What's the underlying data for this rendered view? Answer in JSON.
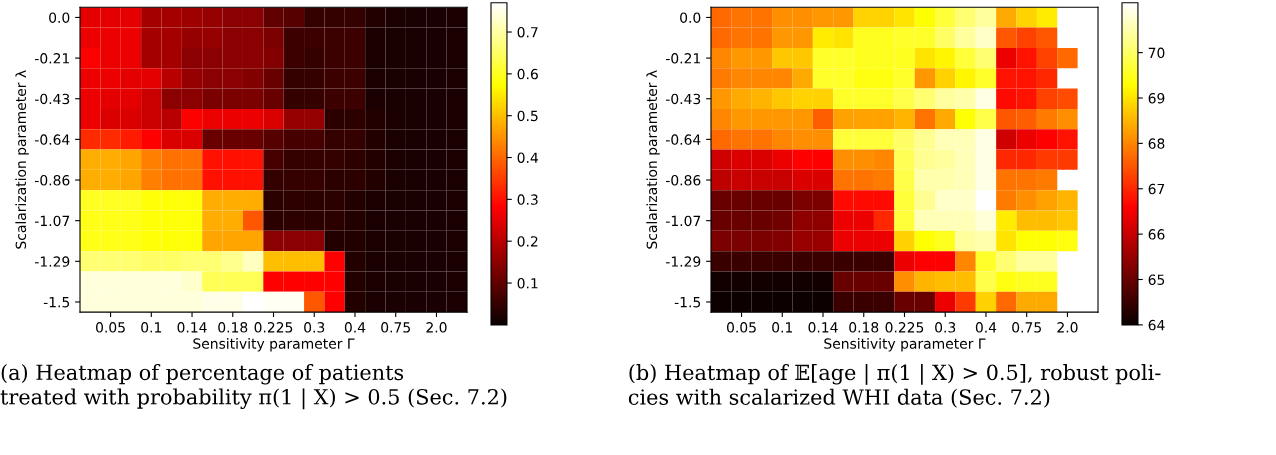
{
  "chart_data": [
    {
      "type": "heatmap",
      "xlabel": "Sensitivity parameter Γ",
      "ylabel": "Scalarization parameter λ",
      "categories": [
        null,
        "0.05",
        null,
        "0.1",
        null,
        "0.14",
        null,
        "0.18",
        null,
        "0.225",
        null,
        "0.3",
        null,
        "0.4",
        null,
        "0.75",
        null,
        "2.0",
        null
      ],
      "y_categories": [
        "0.0",
        null,
        "-0.21",
        null,
        "-0.43",
        null,
        "-0.64",
        null,
        "-0.86",
        null,
        "-1.07",
        null,
        "-1.29",
        null,
        "-1.5"
      ],
      "clim": [
        0.0,
        0.77
      ],
      "cticks": [
        0.1,
        0.2,
        0.3,
        0.4,
        0.5,
        0.6,
        0.7
      ],
      "annotations": [
        "(a) Heatmap of percentage of patients\ntreated with probability π(1 | X) > 0.5 (Sec. 7.2)"
      ],
      "cells": [
        [
          0.25,
          0.25,
          0.25,
          0.18,
          0.18,
          0.17,
          0.16,
          0.15,
          0.15,
          0.1,
          0.09,
          0.05,
          0.05,
          0.05,
          0.03,
          0.02,
          0.02,
          0.02,
          0.02
        ],
        [
          0.26,
          0.26,
          0.26,
          0.18,
          0.18,
          0.16,
          0.16,
          0.15,
          0.15,
          0.13,
          0.06,
          0.06,
          0.06,
          0.06,
          0.02,
          0.02,
          0.02,
          0.02,
          0.02
        ],
        [
          0.28,
          0.26,
          0.26,
          0.18,
          0.18,
          0.15,
          0.15,
          0.15,
          0.15,
          0.14,
          0.06,
          0.05,
          0.06,
          0.06,
          0.02,
          0.02,
          0.02,
          0.02,
          0.02
        ],
        [
          0.26,
          0.26,
          0.25,
          0.25,
          0.2,
          0.16,
          0.15,
          0.15,
          0.14,
          0.11,
          0.05,
          0.05,
          0.06,
          0.06,
          0.02,
          0.02,
          0.02,
          0.02,
          0.02
        ],
        [
          0.26,
          0.25,
          0.25,
          0.22,
          0.15,
          0.15,
          0.13,
          0.13,
          0.13,
          0.11,
          0.05,
          0.05,
          0.06,
          0.06,
          0.02,
          0.02,
          0.02,
          0.02,
          0.02
        ],
        [
          0.26,
          0.24,
          0.24,
          0.22,
          0.2,
          0.28,
          0.26,
          0.26,
          0.26,
          0.24,
          0.16,
          0.16,
          0.04,
          0.04,
          0.03,
          0.02,
          0.02,
          0.02,
          0.02
        ],
        [
          0.33,
          0.33,
          0.31,
          0.28,
          0.24,
          0.24,
          0.11,
          0.11,
          0.11,
          0.09,
          0.07,
          0.07,
          0.05,
          0.05,
          0.03,
          0.02,
          0.02,
          0.02,
          0.02
        ],
        [
          0.48,
          0.48,
          0.47,
          0.43,
          0.41,
          0.41,
          0.3,
          0.3,
          0.3,
          0.07,
          0.05,
          0.05,
          0.05,
          0.04,
          0.03,
          0.02,
          0.02,
          0.02,
          0.02
        ],
        [
          0.48,
          0.48,
          0.47,
          0.43,
          0.41,
          0.41,
          0.3,
          0.3,
          0.3,
          0.05,
          0.05,
          0.05,
          0.04,
          0.04,
          0.03,
          0.02,
          0.02,
          0.02,
          0.02
        ],
        [
          0.6,
          0.6,
          0.6,
          0.58,
          0.58,
          0.58,
          0.48,
          0.48,
          0.48,
          0.04,
          0.04,
          0.04,
          0.04,
          0.03,
          0.02,
          0.02,
          0.02,
          0.02,
          0.02
        ],
        [
          0.59,
          0.59,
          0.59,
          0.58,
          0.58,
          0.58,
          0.48,
          0.48,
          0.38,
          0.04,
          0.04,
          0.04,
          0.04,
          0.03,
          0.02,
          0.02,
          0.02,
          0.02,
          0.02
        ],
        [
          0.59,
          0.59,
          0.59,
          0.58,
          0.58,
          0.58,
          0.47,
          0.47,
          0.47,
          0.15,
          0.15,
          0.15,
          0.03,
          0.03,
          0.02,
          0.02,
          0.02,
          0.02,
          0.02
        ],
        [
          0.66,
          0.66,
          0.66,
          0.65,
          0.65,
          0.66,
          0.66,
          0.68,
          0.72,
          0.5,
          0.5,
          0.5,
          0.28,
          0.03,
          0.02,
          0.02,
          0.02,
          0.02,
          0.02
        ],
        [
          0.74,
          0.74,
          0.74,
          0.74,
          0.74,
          0.73,
          0.64,
          0.64,
          0.64,
          0.28,
          0.28,
          0.28,
          0.28,
          0.03,
          0.02,
          0.02,
          0.02,
          0.02,
          0.02
        ],
        [
          0.74,
          0.74,
          0.74,
          0.74,
          0.74,
          0.74,
          0.75,
          0.75,
          0.77,
          0.76,
          0.76,
          0.38,
          0.28,
          0.03,
          0.02,
          0.02,
          0.02,
          0.02,
          0.02
        ]
      ]
    },
    {
      "type": "heatmap",
      "xlabel": "Sensitivity parameter Γ",
      "ylabel": "Scalarization parameter λ",
      "categories": [
        null,
        "0.05",
        null,
        "0.1",
        null,
        "0.14",
        null,
        "0.18",
        null,
        "0.225",
        null,
        "0.3",
        null,
        "0.4",
        null,
        "0.75",
        null,
        "2.0",
        null
      ],
      "y_categories": [
        "0.0",
        null,
        "-0.21",
        null,
        "-0.43",
        null,
        "-0.64",
        null,
        "-0.86",
        null,
        "-1.07",
        null,
        "-1.29",
        null,
        "-1.5"
      ],
      "clim": [
        64,
        71.1
      ],
      "cticks": [
        64,
        65,
        66,
        67,
        68,
        69,
        70
      ],
      "annotations": [
        "(b) Heatmap of 𝔼[age | π(1 | X) > 0.5], robust poli-\ncies with scalarized WHI data (Sec. 7.2)"
      ],
      "cells": [
        [
          67.7,
          67.8,
          67.8,
          68.1,
          68.1,
          68.2,
          68.2,
          68.8,
          68.8,
          69.0,
          69.3,
          69.7,
          70.1,
          70.4,
          68.4,
          68.8,
          69.1,
          null,
          null
        ],
        [
          67.7,
          67.8,
          67.8,
          68.2,
          68.2,
          69.1,
          69.0,
          69.5,
          69.5,
          69.6,
          69.6,
          70.0,
          70.4,
          70.7,
          67.5,
          67.3,
          67.5,
          null,
          null
        ],
        [
          68.0,
          68.2,
          68.2,
          68.7,
          68.7,
          69.6,
          69.6,
          69.5,
          69.5,
          69.5,
          69.0,
          69.2,
          69.7,
          70.1,
          66.4,
          66.8,
          67.3,
          67.7,
          null
        ],
        [
          67.9,
          68.0,
          68.0,
          68.0,
          68.4,
          69.6,
          69.6,
          69.4,
          69.4,
          69.6,
          68.2,
          68.8,
          69.2,
          69.6,
          66.8,
          66.8,
          67.0,
          null,
          null
        ],
        [
          68.2,
          68.4,
          68.5,
          68.7,
          68.8,
          68.8,
          69.6,
          69.6,
          69.6,
          69.8,
          70.1,
          70.4,
          70.5,
          70.9,
          66.7,
          66.8,
          67.3,
          67.4,
          null
        ],
        [
          68.0,
          68.2,
          68.2,
          68.2,
          68.2,
          67.6,
          68.3,
          68.3,
          68.3,
          68.5,
          67.8,
          68.4,
          69.3,
          69.8,
          67.5,
          67.6,
          67.9,
          68.1,
          null
        ],
        [
          67.7,
          67.8,
          67.8,
          68.0,
          68.1,
          68.1,
          69.7,
          69.7,
          69.7,
          70.0,
          70.3,
          70.6,
          70.6,
          70.9,
          66.1,
          66.4,
          66.6,
          66.8,
          null
        ],
        [
          66.1,
          66.2,
          66.2,
          66.4,
          66.6,
          66.6,
          68.1,
          68.1,
          68.0,
          69.9,
          70.3,
          70.4,
          70.6,
          70.9,
          67.0,
          67.0,
          67.2,
          67.2,
          null
        ],
        [
          65.9,
          66.0,
          66.0,
          66.0,
          66.2,
          66.2,
          67.8,
          67.8,
          67.9,
          69.8,
          70.5,
          70.5,
          70.6,
          70.9,
          67.8,
          67.8,
          67.9,
          null,
          null
        ],
        [
          65.0,
          65.0,
          65.0,
          65.0,
          65.2,
          65.2,
          66.7,
          66.7,
          66.7,
          69.7,
          70.3,
          70.7,
          70.7,
          71.1,
          67.9,
          68.1,
          68.3,
          68.5,
          null
        ],
        [
          65.0,
          65.0,
          65.0,
          65.1,
          65.4,
          65.4,
          66.4,
          66.4,
          67.0,
          69.7,
          70.6,
          70.6,
          70.6,
          70.8,
          69.1,
          68.6,
          68.6,
          68.7,
          null
        ],
        [
          65.2,
          65.2,
          65.2,
          65.3,
          65.5,
          65.5,
          66.4,
          66.4,
          66.4,
          68.8,
          69.3,
          69.5,
          70.4,
          70.5,
          69.0,
          69.3,
          69.3,
          69.4,
          null
        ],
        [
          64.5,
          64.5,
          64.5,
          64.5,
          64.5,
          64.5,
          64.5,
          64.5,
          64.5,
          66.4,
          66.6,
          66.6,
          68.0,
          69.6,
          70.1,
          70.4,
          70.4,
          null,
          null
        ],
        [
          64.1,
          64.1,
          64.1,
          64.1,
          64.1,
          64.1,
          65.0,
          65.0,
          65.0,
          68.1,
          68.5,
          68.6,
          68.6,
          69.8,
          69.4,
          69.5,
          69.5,
          null,
          null
        ],
        [
          64.05,
          64.05,
          64.05,
          64.05,
          64.05,
          64.05,
          64.5,
          64.5,
          64.5,
          65.0,
          65.0,
          66.4,
          67.2,
          68.8,
          67.7,
          68.4,
          68.4,
          null,
          null
        ]
      ]
    }
  ]
}
